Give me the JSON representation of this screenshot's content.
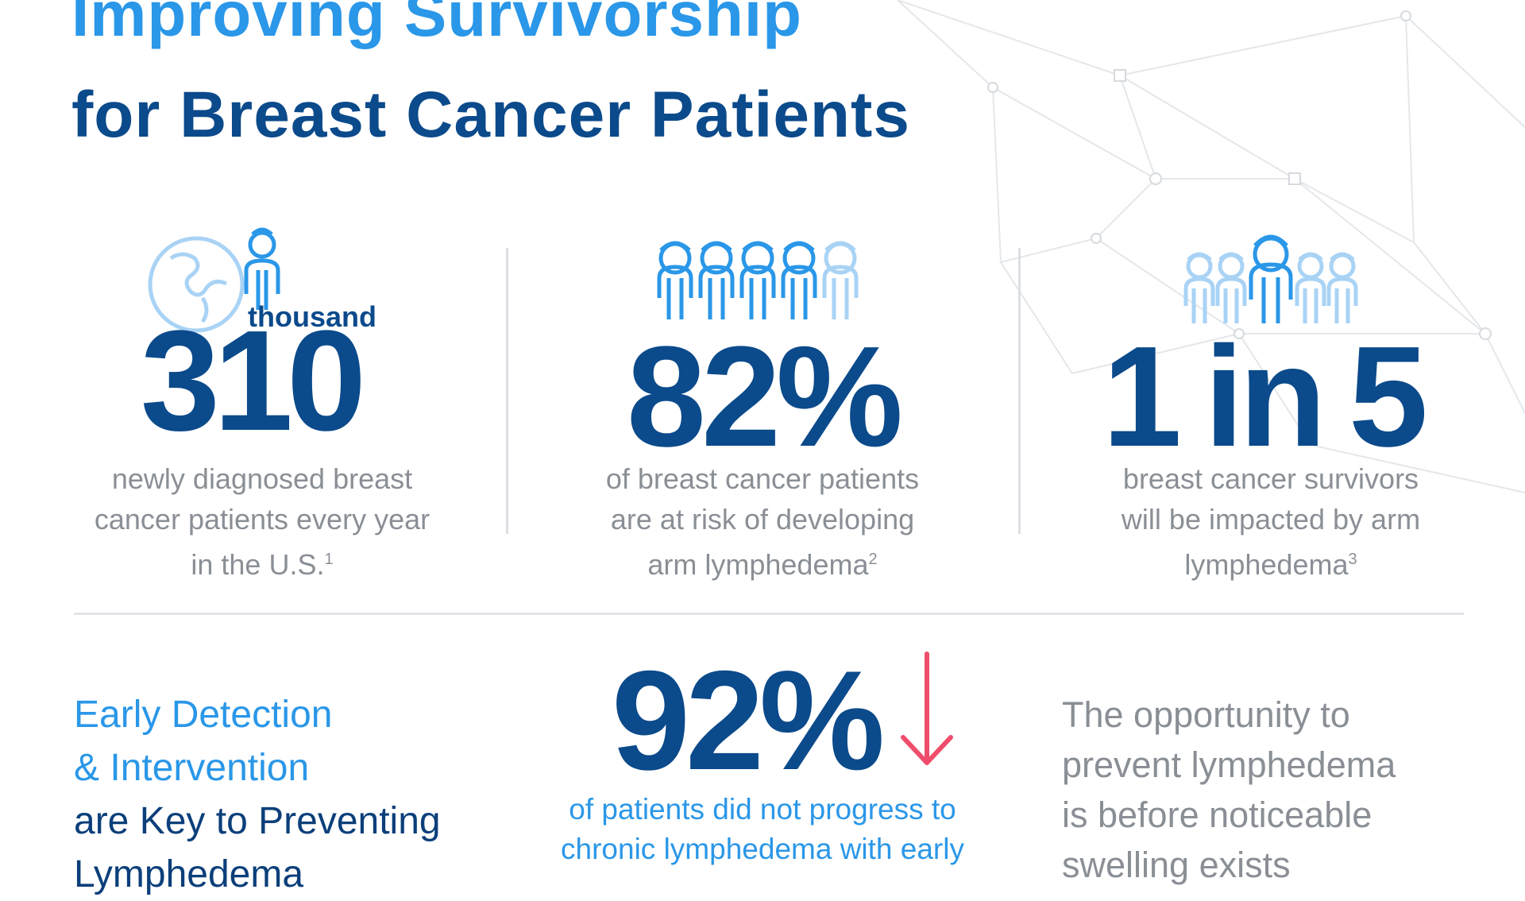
{
  "header": {
    "title_line1": "Improving Survivorship",
    "title_line2": "for Breast Cancer Patients"
  },
  "stats": [
    {
      "number": "310",
      "unit": "thousand",
      "description": "newly diagnosed breast cancer patients every year in the U.S.",
      "line1": "newly diagnosed breast",
      "line2": "cancer patients every year",
      "line3": "in the U.S.",
      "footnote": "1",
      "icon": "globe-woman-icon"
    },
    {
      "number": "82%",
      "line1": "of breast cancer patients",
      "line2": "are at risk of developing",
      "line3": "arm lymphedema",
      "footnote": "2",
      "icon": "five-women-icon"
    },
    {
      "number": "1 in 5",
      "line1": "breast cancer survivors",
      "line2": "will be impacted by arm",
      "line3": "lymphedema",
      "footnote": "3",
      "icon": "one-in-five-women-icon"
    }
  ],
  "bottom": {
    "heading_line1": "Early Detection",
    "heading_line2": "& Intervention",
    "heading_line3": "are Key to Preventing",
    "heading_line4": "Lymphedema",
    "center_number": "92%",
    "center_line1": "of patients did not progress to",
    "center_line2": "chronic lymphedema with early",
    "right_line1": "The opportunity to",
    "right_line2": "prevent lymphedema",
    "right_line3": "is before noticeable",
    "right_line4": "swelling exists",
    "arrow_icon": "down-arrow-icon"
  },
  "colors": {
    "light_blue": "#2a97e8",
    "dark_blue": "#0b4a8b",
    "gray_text": "#8a8f96",
    "arrow_pink": "#ef4d6b",
    "pale_blue": "#a9d3f5"
  }
}
